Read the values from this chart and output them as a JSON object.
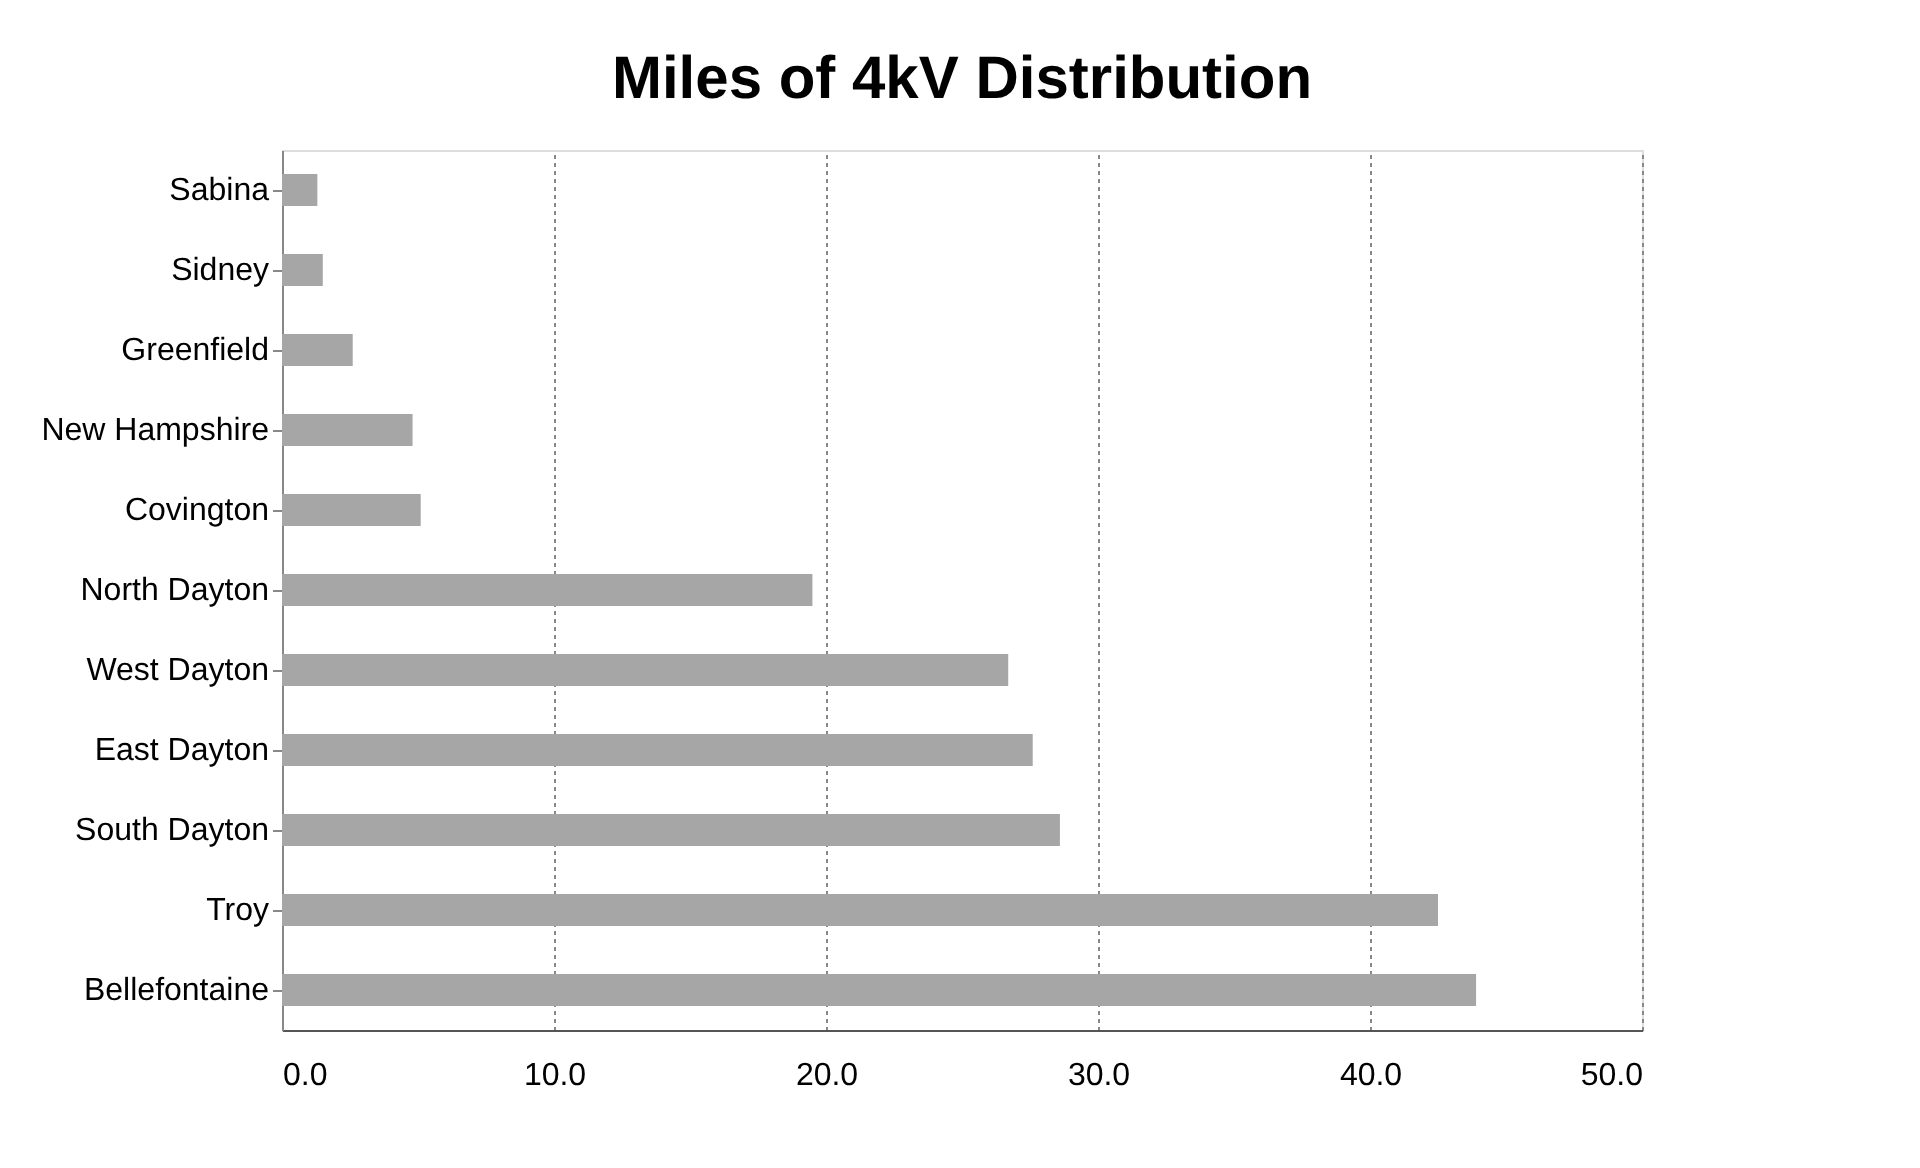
{
  "chart_data": {
    "type": "bar",
    "orientation": "horizontal",
    "title": "Miles of 4kV Distribution",
    "categories": [
      "Sabina",
      "Sidney",
      "Greenfield",
      "New Hampshire",
      "Covington",
      "North Dayton",
      "West Dayton",
      "East Dayton",
      "South Dayton",
      "Troy",
      "Bellefontaine"
    ],
    "values": [
      1.3,
      1.5,
      2.6,
      4.8,
      5.1,
      19.5,
      26.7,
      27.6,
      28.6,
      42.5,
      43.9
    ],
    "color": "#a6a6a6",
    "xlim": [
      0,
      50
    ],
    "xticks": [
      {
        "value": 0,
        "label": "0.0"
      },
      {
        "value": 10,
        "label": "10.0"
      },
      {
        "value": 20,
        "label": "20.0"
      },
      {
        "value": 30,
        "label": "30.0"
      },
      {
        "value": 40,
        "label": "40.0"
      },
      {
        "value": 50,
        "label": "50.0"
      }
    ],
    "grid": "x"
  }
}
